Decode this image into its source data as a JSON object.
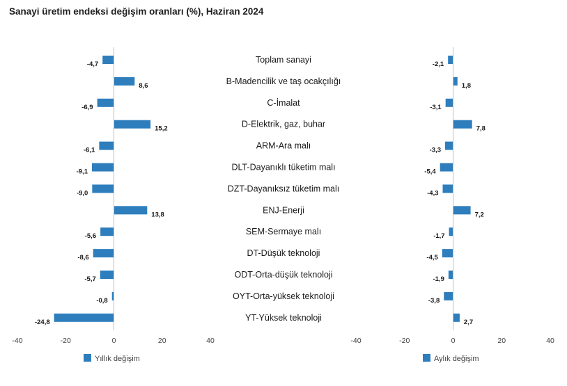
{
  "title": "Sanayi üretim endeksi değişim oranları (%), Haziran 2024",
  "colors": {
    "bar": "#2e7ebd",
    "axis": "#bfbfbf"
  },
  "chart_data": [
    {
      "type": "bar",
      "orientation": "horizontal",
      "legend": "Yıllık değişim",
      "legend_position": "bottom",
      "categories": [
        "Toplam sanayi",
        "B-Madencilik ve taş ocakçılığı",
        "C-İmalat",
        "D-Elektrik, gaz, buhar",
        "ARM-Ara malı",
        "DLT-Dayanıklı tüketim malı",
        "DZT-Dayanıksız tüketim malı",
        "ENJ-Enerji",
        "SEM-Sermaye malı",
        "DT-Düşük teknoloji",
        "ODT-Orta-düşük teknoloji",
        "OYT-Orta-yüksek teknoloji",
        "YT-Yüksek teknoloji"
      ],
      "values": [
        -4.7,
        8.6,
        -6.9,
        15.2,
        -6.1,
        -9.1,
        -9.0,
        13.8,
        -5.6,
        -8.6,
        -5.7,
        -0.8,
        -24.8
      ],
      "value_labels": [
        "-4,7",
        "8,6",
        "-6,9",
        "15,2",
        "-6,1",
        "-9,1",
        "-9,0",
        "13,8",
        "-5,6",
        "-8,6",
        "-5,7",
        "-0,8",
        "-24,8"
      ],
      "xlim": [
        -40,
        40
      ],
      "ticks": [
        -40,
        -20,
        0,
        20,
        40
      ],
      "tick_labels": [
        "-40",
        "-20",
        "0",
        "20",
        "40"
      ]
    },
    {
      "type": "bar",
      "orientation": "horizontal",
      "legend": "Aylık değişim",
      "legend_position": "bottom",
      "categories": [
        "Toplam sanayi",
        "B-Madencilik ve taş ocakçılığı",
        "C-İmalat",
        "D-Elektrik, gaz, buhar",
        "ARM-Ara malı",
        "DLT-Dayanıklı tüketim malı",
        "DZT-Dayanıksız tüketim malı",
        "ENJ-Enerji",
        "SEM-Sermaye malı",
        "DT-Düşük teknoloji",
        "ODT-Orta-düşük teknoloji",
        "OYT-Orta-yüksek teknoloji",
        "YT-Yüksek teknoloji"
      ],
      "values": [
        -2.1,
        1.8,
        -3.1,
        7.8,
        -3.3,
        -5.4,
        -4.3,
        7.2,
        -1.7,
        -4.5,
        -1.9,
        -3.8,
        2.7
      ],
      "value_labels": [
        "-2,1",
        "1,8",
        "-3,1",
        "7,8",
        "-3,3",
        "-5,4",
        "-4,3",
        "7,2",
        "-1,7",
        "-4,5",
        "-1,9",
        "-3,8",
        "2,7"
      ],
      "xlim": [
        -40,
        40
      ],
      "ticks": [
        -40,
        -20,
        0,
        20,
        40
      ],
      "tick_labels": [
        "-40",
        "-20",
        "0",
        "20",
        "40"
      ]
    }
  ]
}
